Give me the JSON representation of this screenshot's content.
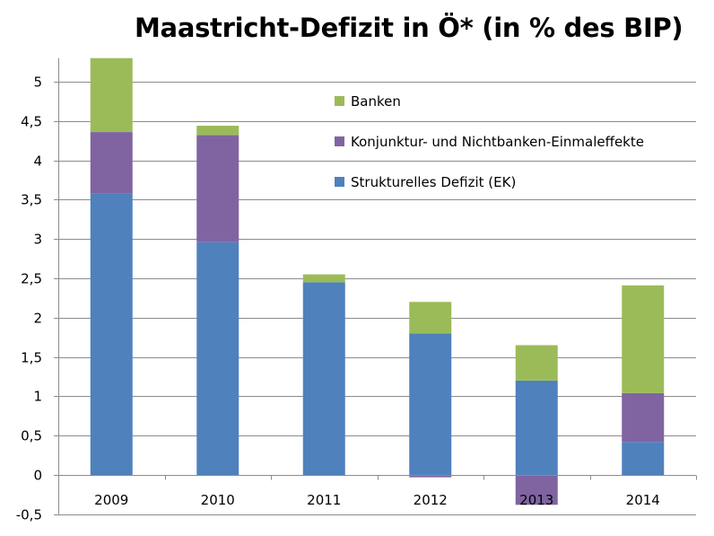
{
  "chart_data": {
    "type": "bar",
    "stacked": true,
    "title": "Maastricht-Defizit in Ö* (in % des BIP)",
    "xlabel": "",
    "ylabel": "",
    "categories": [
      "2009",
      "2010",
      "2011",
      "2012",
      "2013",
      "2014"
    ],
    "ylim": [
      -0.5,
      5.3
    ],
    "yticks": [
      -0.5,
      0,
      0.5,
      1,
      1.5,
      2,
      2.5,
      3,
      3.5,
      4,
      4.5,
      5
    ],
    "ytick_labels": [
      "-0,5",
      "0",
      "0,5",
      "1",
      "1,5",
      "2",
      "2,5",
      "3",
      "3,5",
      "4",
      "4,5",
      "5"
    ],
    "grid": true,
    "legend_position": "top-right",
    "series": [
      {
        "name": "Strukturelles Defizit (EK)",
        "color": "#4f81bd",
        "values": [
          3.58,
          2.96,
          2.45,
          1.8,
          1.2,
          0.42
        ]
      },
      {
        "name": "Konjunktur- und Nichtbanken-Einmaleffekte",
        "color": "#8064a2",
        "values": [
          0.78,
          1.36,
          0.0,
          -0.03,
          -0.38,
          0.62
        ]
      },
      {
        "name": "Banken",
        "color": "#9bbb59",
        "values": [
          0.94,
          0.12,
          0.1,
          0.4,
          0.45,
          1.37
        ]
      }
    ],
    "legend_order": [
      "Banken",
      "Konjunktur- und Nichtbanken-Einmaleffekte",
      "Strukturelles Defizit (EK)"
    ]
  }
}
